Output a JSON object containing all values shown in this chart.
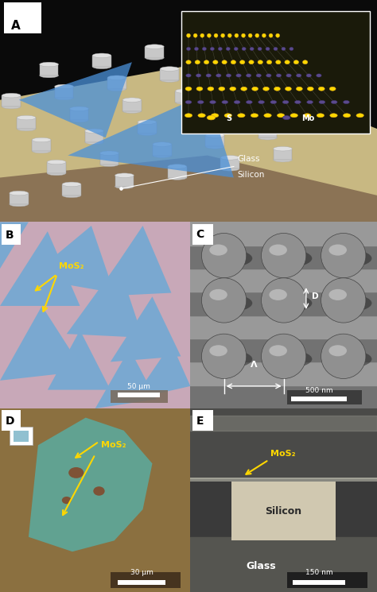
{
  "fig_width": 4.74,
  "fig_height": 7.45,
  "panel_A_label": "A",
  "panel_B_label": "B",
  "panel_C_label": "C",
  "panel_D_label": "D",
  "panel_E_label": "E",
  "label_B_text": "MoS₂",
  "label_C_D": "D",
  "label_C_Lambda": "Λ",
  "label_C_scale": "500 nm",
  "label_B_scale": "50 μm",
  "label_D_scale": "30 μm",
  "label_E_scale": "150 nm",
  "label_E_mos2": "MoS₂",
  "label_E_silicon": "Silicon",
  "label_E_glass": "Glass",
  "label_D_mos2": "MoS₂",
  "label_A_glass": "Glass",
  "label_A_silicon": "Silicon",
  "label_A_S": "S",
  "label_A_Mo": "Mo",
  "bg_color": "#000000",
  "panel_label_color": "#000000",
  "yellow_arrow": "#FFD700",
  "white_color": "#FFFFFF",
  "tan_color": "#C8B882",
  "blue_mos2": "#4A90D9",
  "cylinder_color": "#C0C0C0",
  "gray_bg": "#808080",
  "dark_gray": "#505050",
  "light_gray": "#A0A0A0",
  "pink_color": "#D9A8B8",
  "blue_light": "#7AAAD0"
}
